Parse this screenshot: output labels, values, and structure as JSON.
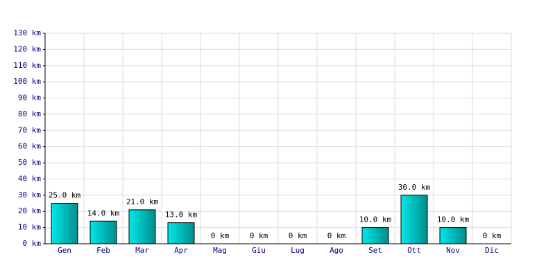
{
  "chart_data": {
    "type": "bar",
    "categories": [
      "Gen",
      "Feb",
      "Mar",
      "Apr",
      "Mag",
      "Giu",
      "Lug",
      "Ago",
      "Set",
      "Ott",
      "Nov",
      "Dic"
    ],
    "values": [
      25,
      14,
      21,
      13,
      0,
      0,
      0,
      0,
      10,
      30,
      10,
      0
    ],
    "value_labels": [
      "25.0 km",
      "14.0 km",
      "21.0 km",
      "13.0 km",
      "0 km",
      "0 km",
      "0 km",
      "0 km",
      "10.0 km",
      "30.0 km",
      "10.0 km",
      "0 km"
    ],
    "color": "#00cccc",
    "ylim": [
      0,
      130
    ],
    "yticks": [
      {
        "value": 0,
        "label": "0 km"
      },
      {
        "value": 10,
        "label": "10 km"
      },
      {
        "value": 20,
        "label": "20 km"
      },
      {
        "value": 30,
        "label": "30 km"
      },
      {
        "value": 40,
        "label": "40 km"
      },
      {
        "value": 50,
        "label": "50 km"
      },
      {
        "value": 60,
        "label": "60 km"
      },
      {
        "value": 70,
        "label": "70 km"
      },
      {
        "value": 80,
        "label": "80 km"
      },
      {
        "value": 90,
        "label": "90 km"
      },
      {
        "value": 100,
        "label": "100 km"
      },
      {
        "value": 110,
        "label": "110 km"
      },
      {
        "value": 120,
        "label": "120 km"
      },
      {
        "value": 130,
        "label": "130 km"
      }
    ],
    "grid": true
  }
}
